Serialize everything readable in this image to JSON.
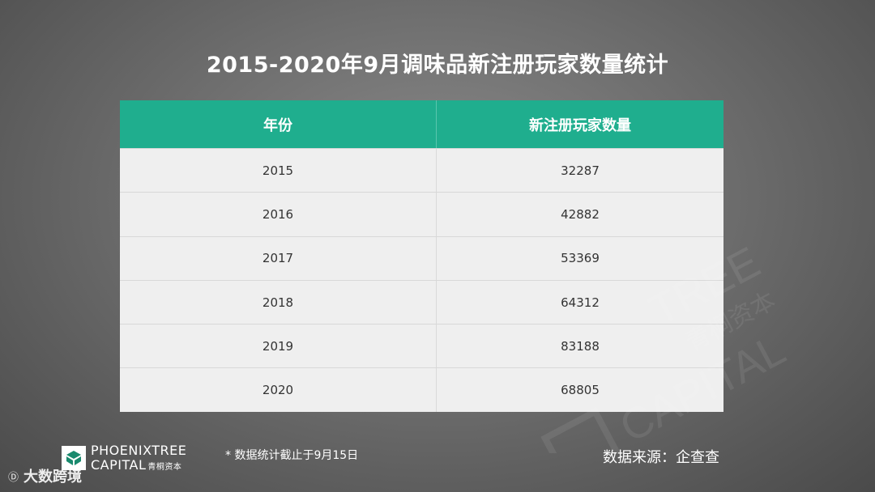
{
  "title": "2015-2020年9月调味品新注册玩家数量统计",
  "table": {
    "headers": [
      "年份",
      "新注册玩家数量"
    ],
    "rows": [
      {
        "year": "2015",
        "count": "32287"
      },
      {
        "year": "2016",
        "count": "42882"
      },
      {
        "year": "2017",
        "count": "53369"
      },
      {
        "year": "2018",
        "count": "64312"
      },
      {
        "year": "2019",
        "count": "83188"
      },
      {
        "year": "2020",
        "count": "68805"
      }
    ]
  },
  "logo": {
    "line1": "PHOENIXTREE",
    "line2": "CAPITAL",
    "line2_cn": "青桐资本",
    "icon": "phoenixtree-logo-icon"
  },
  "note": "* 数据统计截止于9月15日",
  "source": "数据来源：企查查",
  "watermark": {
    "line1": "CAPITAL",
    "line2": "TREE",
    "cn": "青桐资本"
  },
  "brand2": {
    "mark": "Ⓓ",
    "text": "大数跨境"
  },
  "colors": {
    "header_bg": "#1fae8e",
    "row_bg": "#efefef",
    "text_dark": "#333333",
    "text_light": "#ffffff"
  }
}
